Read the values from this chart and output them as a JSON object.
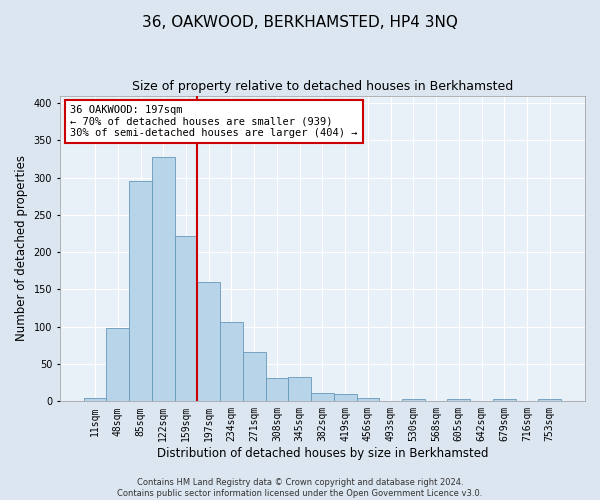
{
  "title": "36, OAKWOOD, BERKHAMSTED, HP4 3NQ",
  "subtitle": "Size of property relative to detached houses in Berkhamsted",
  "xlabel": "Distribution of detached houses by size in Berkhamsted",
  "ylabel": "Number of detached properties",
  "footer_line1": "Contains HM Land Registry data © Crown copyright and database right 2024.",
  "footer_line2": "Contains public sector information licensed under the Open Government Licence v3.0.",
  "bar_labels": [
    "11sqm",
    "48sqm",
    "85sqm",
    "122sqm",
    "159sqm",
    "197sqm",
    "234sqm",
    "271sqm",
    "308sqm",
    "345sqm",
    "382sqm",
    "419sqm",
    "456sqm",
    "493sqm",
    "530sqm",
    "568sqm",
    "605sqm",
    "642sqm",
    "679sqm",
    "716sqm",
    "753sqm"
  ],
  "bar_values": [
    4,
    98,
    296,
    328,
    222,
    160,
    106,
    66,
    31,
    32,
    11,
    10,
    5,
    0,
    3,
    0,
    3,
    0,
    3,
    0,
    3
  ],
  "bar_color": "#b8d4e8",
  "bar_edge_color": "#6699bb",
  "vline_index": 5,
  "annotation_line1": "36 OAKWOOD: 197sqm",
  "annotation_line2": "← 70% of detached houses are smaller (939)",
  "annotation_line3": "30% of semi-detached houses are larger (404) →",
  "annotation_box_color": "#ffffff",
  "annotation_box_edge": "#cc0000",
  "ylim": [
    0,
    410
  ],
  "yticks": [
    0,
    50,
    100,
    150,
    200,
    250,
    300,
    350,
    400
  ],
  "bg_color": "#dce6f0",
  "plot_bg_color": "#e8f0f8",
  "grid_color": "#ffffff",
  "vline_color": "#cc0000",
  "title_fontsize": 11,
  "subtitle_fontsize": 9,
  "tick_fontsize": 7,
  "ylabel_fontsize": 8.5,
  "xlabel_fontsize": 8.5,
  "footer_fontsize": 6
}
